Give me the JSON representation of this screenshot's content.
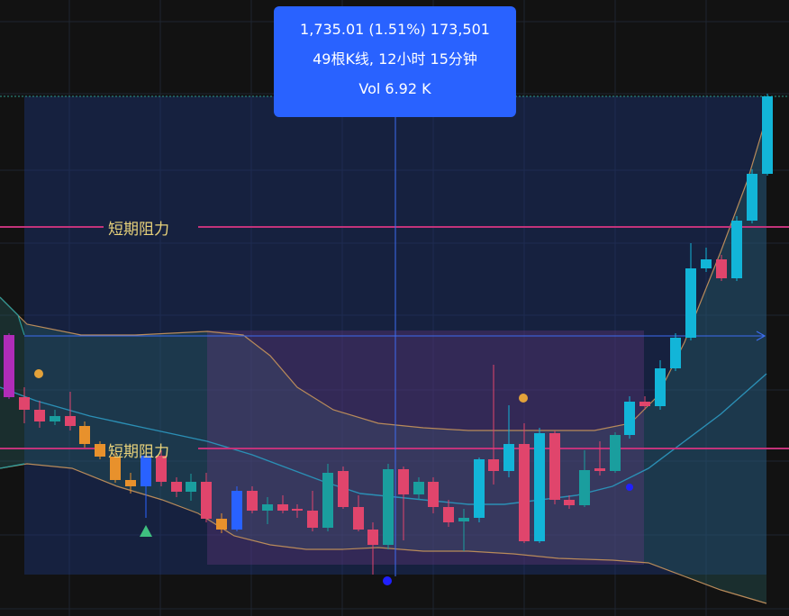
{
  "tooltip": {
    "line1": "1,735.01 (1.51%) 173,501",
    "line2": "49根K线, 12小时 15分钟",
    "line3": "Vol 6.92 K"
  },
  "colors": {
    "background": "#121212",
    "up": "#12b5d8",
    "down": "#e0456c",
    "neutral_up": "#1a9e9e",
    "highlight_blue": "#2962ff",
    "orange": "#e8912c",
    "magenta": "#b02cb8",
    "resistance": "#c2337a",
    "band_line": "#b88a5a",
    "measure_fill": "#1e3a8a"
  },
  "chart_data": {
    "type": "candlestick",
    "title": "",
    "indicator": "bollinger-bands",
    "annotations": [
      {
        "text": "短期阻力",
        "kind": "horizontal-line"
      },
      {
        "text": "短期阻力",
        "kind": "horizontal-line"
      }
    ],
    "measure": {
      "price_change": "1,735.01",
      "percent_change": "1.51%",
      "ticks": "173,501",
      "bars": 49,
      "duration": "12小时 15分钟",
      "volume": "6.92 K"
    },
    "markers": [
      "buy-triangle",
      "signal-dot",
      "signal-dot",
      "signal-dot",
      "signal-dot"
    ]
  }
}
